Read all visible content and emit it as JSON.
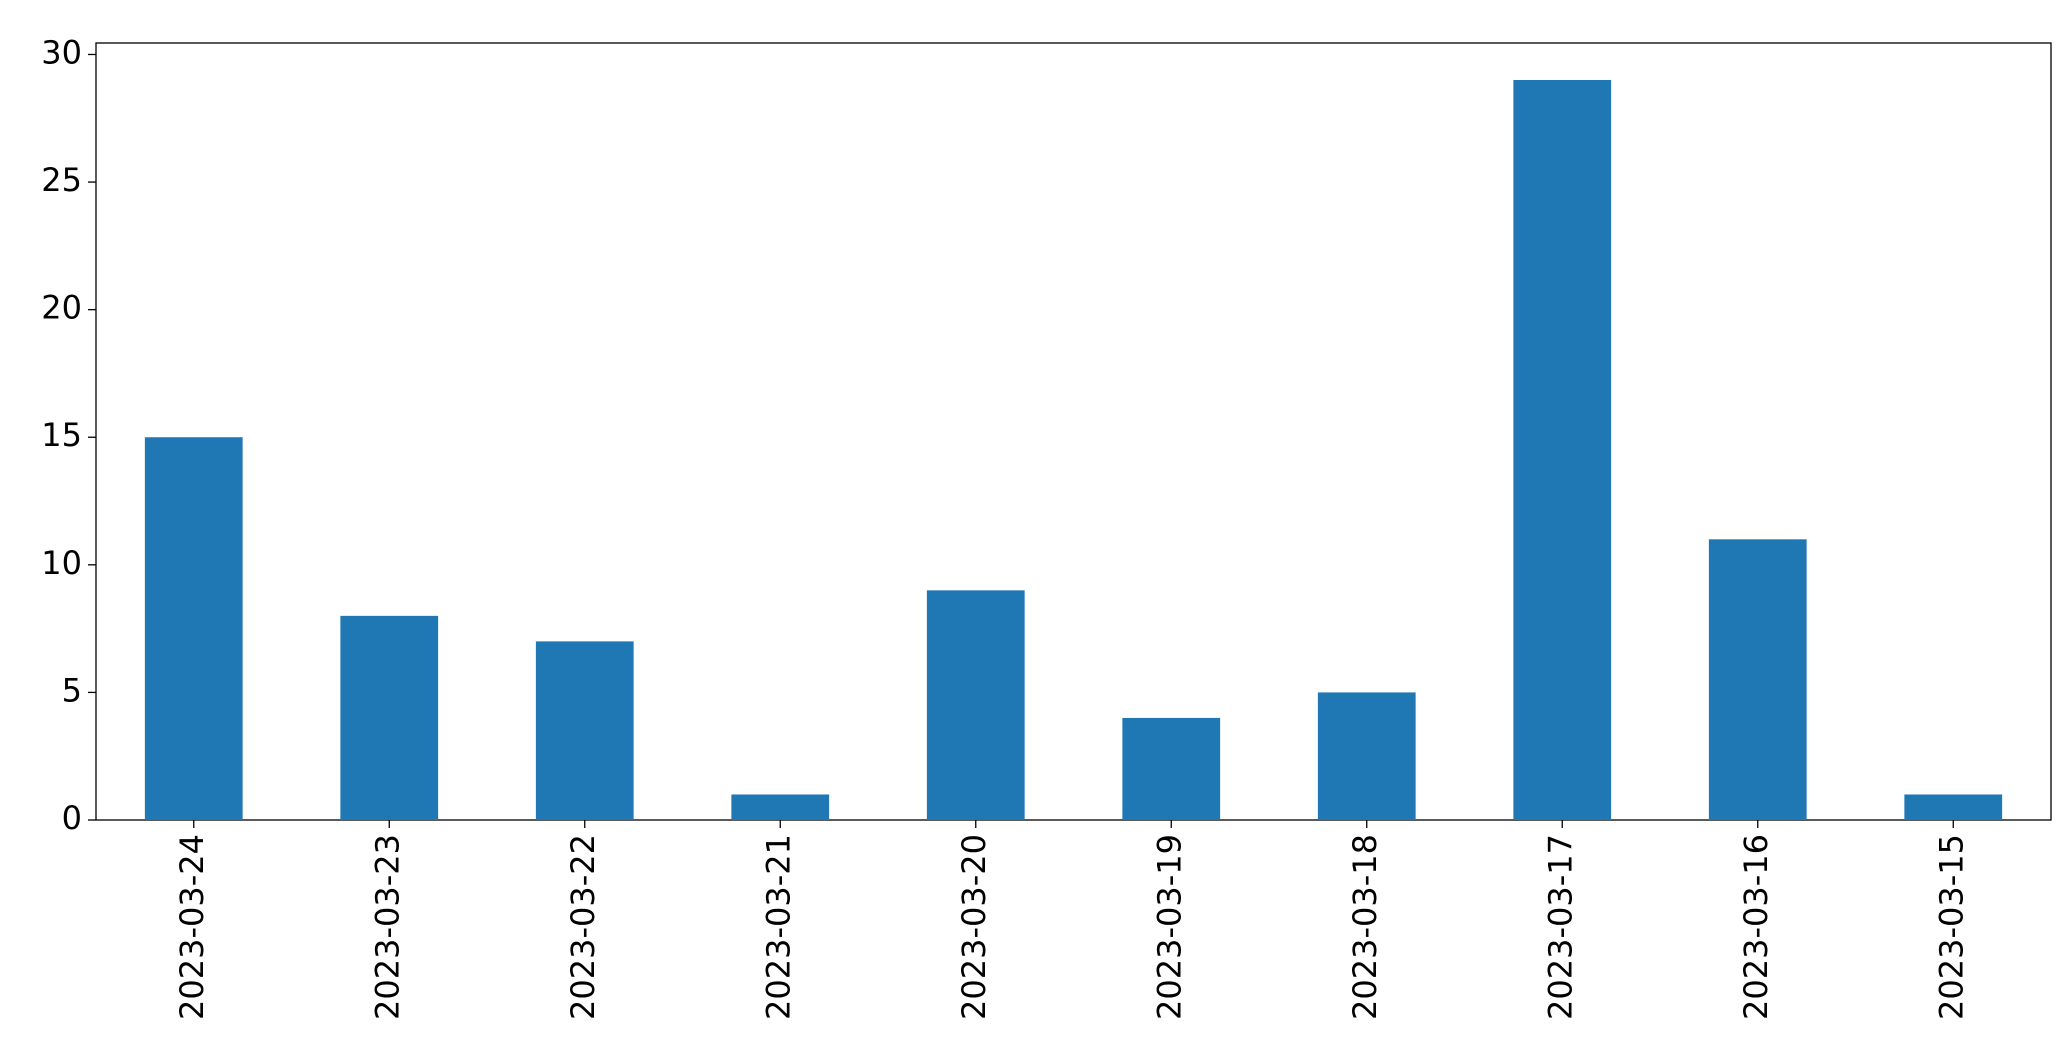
{
  "chart_data": {
    "type": "bar",
    "categories": [
      "2023-03-24",
      "2023-03-23",
      "2023-03-22",
      "2023-03-21",
      "2023-03-20",
      "2023-03-19",
      "2023-03-18",
      "2023-03-17",
      "2023-03-16",
      "2023-03-15"
    ],
    "values": [
      15,
      8,
      7,
      1,
      9,
      4,
      5,
      29,
      11,
      1
    ],
    "color": "#1f77b4",
    "ylim": [
      0,
      30.45
    ],
    "yticks": [
      0,
      5,
      10,
      15,
      20,
      25,
      30
    ],
    "grid": false
  }
}
